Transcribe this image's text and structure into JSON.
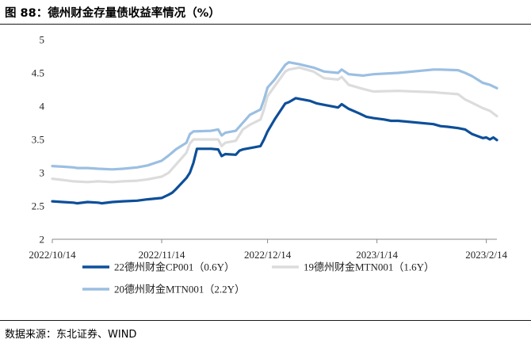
{
  "header": {
    "title": "图 88：德州财金存量债收益率情况（%）"
  },
  "footer": {
    "source": "数据来源：东北证券、WIND"
  },
  "chart_data": {
    "type": "line",
    "ylim": [
      2,
      5
    ],
    "yticks": [
      "2",
      "2.5",
      "3",
      "3.5",
      "4",
      "4.5",
      "5"
    ],
    "xticks": [
      "2022/10/14",
      "2022/11/14",
      "2022/12/14",
      "2023/1/14",
      "2023/2/14"
    ],
    "xrange": [
      "2022/10/14",
      "2023/2/17"
    ],
    "legend_position": "bottom",
    "grid": false,
    "series": [
      {
        "name": "22德州财金CP001（0.6Y）",
        "color": "#0d4f99",
        "points": [
          [
            "2022/10/14",
            2.57
          ],
          [
            "2022/10/17",
            2.56
          ],
          [
            "2022/10/20",
            2.55
          ],
          [
            "2022/10/21",
            2.54
          ],
          [
            "2022/10/24",
            2.56
          ],
          [
            "2022/10/27",
            2.55
          ],
          [
            "2022/10/28",
            2.54
          ],
          [
            "2022/10/31",
            2.56
          ],
          [
            "2022/11/3",
            2.57
          ],
          [
            "2022/11/7",
            2.58
          ],
          [
            "2022/11/10",
            2.6
          ],
          [
            "2022/11/14",
            2.62
          ],
          [
            "2022/11/16",
            2.67
          ],
          [
            "2022/11/17",
            2.7
          ],
          [
            "2022/11/18",
            2.75
          ],
          [
            "2022/11/21",
            2.92
          ],
          [
            "2022/11/22",
            3.0
          ],
          [
            "2022/11/23",
            3.15
          ],
          [
            "2022/11/24",
            3.36
          ],
          [
            "2022/11/28",
            3.36
          ],
          [
            "2022/11/30",
            3.35
          ],
          [
            "2022/12/1",
            3.25
          ],
          [
            "2022/12/2",
            3.28
          ],
          [
            "2022/12/5",
            3.27
          ],
          [
            "2022/12/6",
            3.33
          ],
          [
            "2022/12/7",
            3.35
          ],
          [
            "2022/12/9",
            3.37
          ],
          [
            "2022/12/12",
            3.4
          ],
          [
            "2022/12/13",
            3.5
          ],
          [
            "2022/12/14",
            3.62
          ],
          [
            "2022/12/16",
            3.8
          ],
          [
            "2022/12/19",
            4.04
          ],
          [
            "2022/12/20",
            4.06
          ],
          [
            "2022/12/22",
            4.12
          ],
          [
            "2022/12/26",
            4.08
          ],
          [
            "2022/12/28",
            4.04
          ],
          [
            "2022/12/30",
            4.02
          ],
          [
            "2023/1/3",
            3.98
          ],
          [
            "2023/1/4",
            4.03
          ],
          [
            "2023/1/6",
            3.96
          ],
          [
            "2023/1/9",
            3.89
          ],
          [
            "2023/1/11",
            3.84
          ],
          [
            "2023/1/13",
            3.82
          ],
          [
            "2023/1/16",
            3.8
          ],
          [
            "2023/1/18",
            3.78
          ],
          [
            "2023/1/20",
            3.78
          ],
          [
            "2023/1/30",
            3.73
          ],
          [
            "2023/2/1",
            3.7
          ],
          [
            "2023/2/3",
            3.69
          ],
          [
            "2023/2/6",
            3.67
          ],
          [
            "2023/2/8",
            3.65
          ],
          [
            "2023/2/10",
            3.58
          ],
          [
            "2023/2/13",
            3.52
          ],
          [
            "2023/2/14",
            3.53
          ],
          [
            "2023/2/15",
            3.5
          ],
          [
            "2023/2/16",
            3.53
          ],
          [
            "2023/2/17",
            3.49
          ]
        ]
      },
      {
        "name": "19德州财金MTN001（1.6Y）",
        "color": "#dcdcdc",
        "points": [
          [
            "2022/10/14",
            2.91
          ],
          [
            "2022/10/17",
            2.89
          ],
          [
            "2022/10/20",
            2.87
          ],
          [
            "2022/10/24",
            2.86
          ],
          [
            "2022/10/27",
            2.87
          ],
          [
            "2022/10/31",
            2.86
          ],
          [
            "2022/11/3",
            2.87
          ],
          [
            "2022/11/7",
            2.88
          ],
          [
            "2022/11/10",
            2.9
          ],
          [
            "2022/11/14",
            2.94
          ],
          [
            "2022/11/16",
            3.0
          ],
          [
            "2022/11/18",
            3.12
          ],
          [
            "2022/11/21",
            3.3
          ],
          [
            "2022/11/22",
            3.44
          ],
          [
            "2022/11/23",
            3.5
          ],
          [
            "2022/11/28",
            3.5
          ],
          [
            "2022/11/30",
            3.5
          ],
          [
            "2022/12/1",
            3.4
          ],
          [
            "2022/12/2",
            3.45
          ],
          [
            "2022/12/5",
            3.48
          ],
          [
            "2022/12/7",
            3.65
          ],
          [
            "2022/12/9",
            3.72
          ],
          [
            "2022/12/12",
            3.8
          ],
          [
            "2022/12/13",
            3.95
          ],
          [
            "2022/12/14",
            4.15
          ],
          [
            "2022/12/16",
            4.3
          ],
          [
            "2022/12/19",
            4.52
          ],
          [
            "2022/12/20",
            4.55
          ],
          [
            "2022/12/23",
            4.58
          ],
          [
            "2022/12/27",
            4.52
          ],
          [
            "2022/12/30",
            4.42
          ],
          [
            "2023/1/3",
            4.4
          ],
          [
            "2023/1/4",
            4.44
          ],
          [
            "2023/1/6",
            4.32
          ],
          [
            "2023/1/10",
            4.26
          ],
          [
            "2023/1/13",
            4.22
          ],
          [
            "2023/1/20",
            4.23
          ],
          [
            "2023/1/30",
            4.21
          ],
          [
            "2023/2/1",
            4.2
          ],
          [
            "2023/2/6",
            4.18
          ],
          [
            "2023/2/8",
            4.1
          ],
          [
            "2023/2/10",
            4.05
          ],
          [
            "2023/2/13",
            3.97
          ],
          [
            "2023/2/15",
            3.93
          ],
          [
            "2023/2/17",
            3.85
          ]
        ]
      },
      {
        "name": "20德州财金MTN001（2.2Y）",
        "color": "#9bbfe2",
        "points": [
          [
            "2022/10/14",
            3.1
          ],
          [
            "2022/10/17",
            3.09
          ],
          [
            "2022/10/20",
            3.08
          ],
          [
            "2022/10/21",
            3.07
          ],
          [
            "2022/10/24",
            3.07
          ],
          [
            "2022/10/27",
            3.06
          ],
          [
            "2022/10/31",
            3.05
          ],
          [
            "2022/11/3",
            3.06
          ],
          [
            "2022/11/7",
            3.08
          ],
          [
            "2022/11/10",
            3.11
          ],
          [
            "2022/11/14",
            3.18
          ],
          [
            "2022/11/16",
            3.26
          ],
          [
            "2022/11/18",
            3.35
          ],
          [
            "2022/11/21",
            3.45
          ],
          [
            "2022/11/22",
            3.58
          ],
          [
            "2022/11/23",
            3.62
          ],
          [
            "2022/11/28",
            3.63
          ],
          [
            "2022/11/30",
            3.65
          ],
          [
            "2022/12/1",
            3.56
          ],
          [
            "2022/12/2",
            3.6
          ],
          [
            "2022/12/5",
            3.63
          ],
          [
            "2022/12/7",
            3.75
          ],
          [
            "2022/12/9",
            3.87
          ],
          [
            "2022/12/12",
            3.95
          ],
          [
            "2022/12/13",
            4.1
          ],
          [
            "2022/12/14",
            4.28
          ],
          [
            "2022/12/16",
            4.4
          ],
          [
            "2022/12/19",
            4.62
          ],
          [
            "2022/12/20",
            4.66
          ],
          [
            "2022/12/23",
            4.63
          ],
          [
            "2022/12/27",
            4.58
          ],
          [
            "2022/12/30",
            4.52
          ],
          [
            "2023/1/3",
            4.5
          ],
          [
            "2023/1/4",
            4.55
          ],
          [
            "2023/1/6",
            4.48
          ],
          [
            "2023/1/10",
            4.46
          ],
          [
            "2023/1/13",
            4.48
          ],
          [
            "2023/1/20",
            4.5
          ],
          [
            "2023/1/30",
            4.55
          ],
          [
            "2023/2/1",
            4.55
          ],
          [
            "2023/2/6",
            4.54
          ],
          [
            "2023/2/8",
            4.5
          ],
          [
            "2023/2/10",
            4.45
          ],
          [
            "2023/2/13",
            4.35
          ],
          [
            "2023/2/15",
            4.32
          ],
          [
            "2023/2/17",
            4.27
          ]
        ]
      }
    ]
  }
}
